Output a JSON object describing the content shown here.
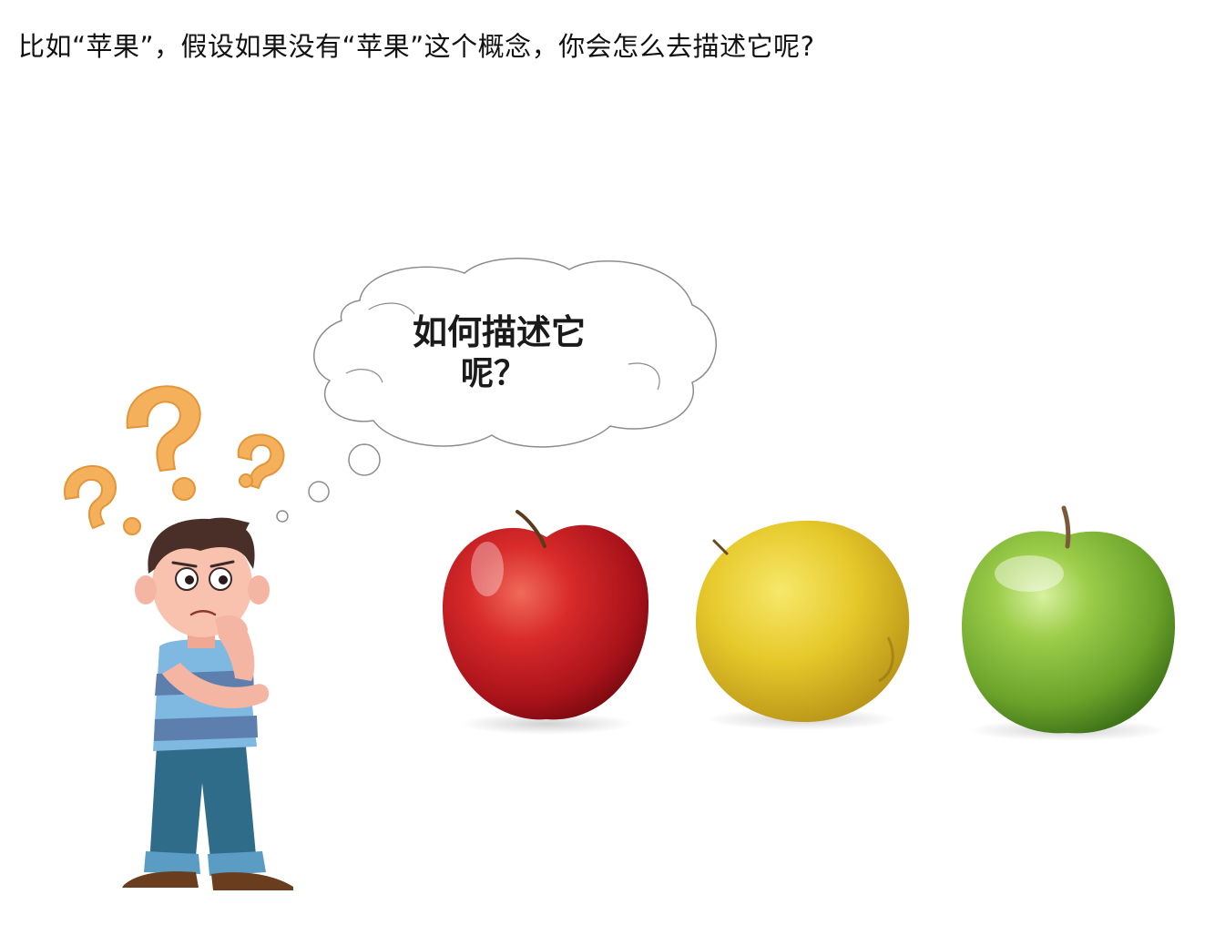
{
  "question": "比如“苹果”，假设如果没有“苹果”这个概念，你会怎么去描述它呢?",
  "thought_bubble": {
    "line1": "如何描述它",
    "line2": "呢？"
  },
  "colors": {
    "question_mark": "#f5b05b",
    "apple_red": "#c81e24",
    "apple_yellow": "#e6c82a",
    "apple_green": "#7cb52e"
  }
}
